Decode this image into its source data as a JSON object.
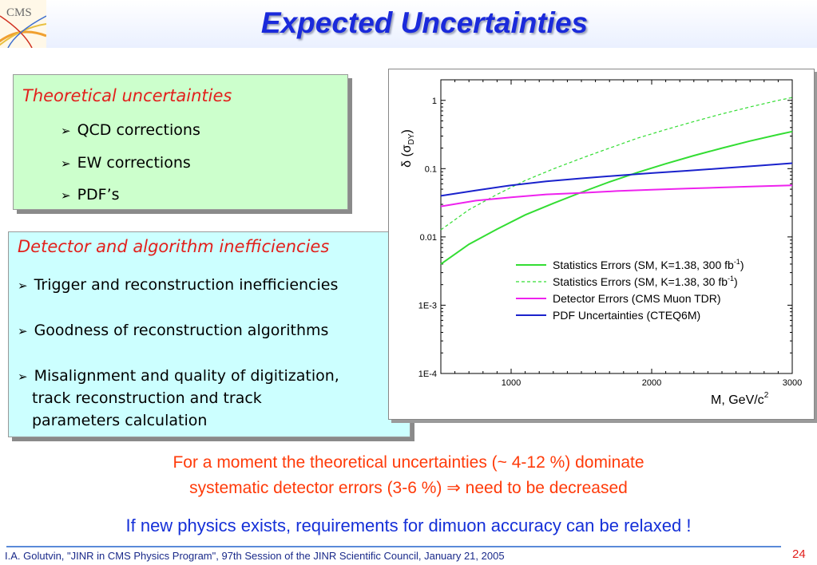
{
  "slide": {
    "logo_text": "CMS",
    "title": "Expected Uncertainties"
  },
  "theory_box": {
    "heading": "Theoretical uncertainties",
    "items": [
      "QCD corrections",
      "EW corrections",
      "PDF’s"
    ]
  },
  "detector_box": {
    "heading": "Detector and algorithm inefficiencies",
    "items": [
      "Trigger and reconstruction inefficiencies",
      "Goodness of reconstruction algorithms"
    ],
    "item3_lines": [
      "Misalignment and quality of digitization,",
      "track reconstruction and track",
      "parameters calculation"
    ]
  },
  "notes": {
    "red_line1": "For a moment the theoretical uncertainties (~ 4-12 %) dominate",
    "red_line2": "systematic detector errors (3-6 %) ⇒ need to be decreased",
    "blue": "If new physics exists, requirements for dimuon accuracy can be relaxed !"
  },
  "footer": {
    "text": "I.A. Golutvin, \"JINR in CMS Physics Program\", 97th Session of the JINR Scientific Council, January 21, 2005",
    "page": "24"
  },
  "chart_data": {
    "type": "line",
    "xlabel": "M, GeV/c",
    "xlabel_sup": "2",
    "ylabel": "δ (σ",
    "ylabel_sub": "DY",
    "ylabel_end": ")",
    "x_scale": "linear",
    "y_scale": "log",
    "xlim": [
      500,
      3000
    ],
    "ylim": [
      0.0001,
      2
    ],
    "xticks": [
      1000,
      2000,
      3000
    ],
    "xtick_labels": [
      "1000",
      "2000",
      "3000"
    ],
    "yticks": [
      1,
      0.1,
      0.01,
      0.001,
      0.0001
    ],
    "ytick_labels": [
      "1",
      "0.1",
      "0.01",
      "1E-3",
      "1E-4"
    ],
    "grid": false,
    "legend_position": "lower-right",
    "series": [
      {
        "name": "Statistics Errors (SM, K=1.38, 300 fb",
        "name_sup": "-1",
        "name_end": ")",
        "color": "#33dd33",
        "dash": "solid",
        "x": [
          500,
          700,
          900,
          1100,
          1300,
          1500,
          1700,
          1900,
          2100,
          2300,
          2500,
          2700,
          2900,
          3000
        ],
        "y": [
          0.004,
          0.0078,
          0.013,
          0.021,
          0.031,
          0.045,
          0.064,
          0.088,
          0.118,
          0.155,
          0.2,
          0.254,
          0.316,
          0.35
        ]
      },
      {
        "name": "Statistics Errors (SM, K=1.38, 30 fb",
        "name_sup": "-1",
        "name_end": ")",
        "color": "#33dd33",
        "dash": "dashed",
        "x": [
          500,
          700,
          900,
          1100,
          1300,
          1500,
          1700,
          1900,
          2100,
          2300,
          2500,
          2700,
          2900,
          3000
        ],
        "y": [
          0.0127,
          0.025,
          0.042,
          0.067,
          0.099,
          0.142,
          0.2,
          0.28,
          0.373,
          0.49,
          0.633,
          0.8,
          1.0,
          1.1
        ]
      },
      {
        "name": "Detector Errors (CMS Muon TDR)",
        "color": "#ee22ee",
        "dash": "solid",
        "x": [
          500,
          750,
          1000,
          1250,
          1500,
          1750,
          2000,
          2250,
          2500,
          2750,
          3000
        ],
        "y": [
          0.028,
          0.034,
          0.038,
          0.042,
          0.044,
          0.047,
          0.049,
          0.051,
          0.053,
          0.055,
          0.057
        ]
      },
      {
        "name": "PDF Uncertainties (CTEQ6M)",
        "color": "#1a22cc",
        "dash": "solid",
        "x": [
          500,
          750,
          1000,
          1250,
          1500,
          1750,
          2000,
          2250,
          2500,
          2750,
          3000
        ],
        "y": [
          0.04,
          0.048,
          0.057,
          0.065,
          0.072,
          0.079,
          0.086,
          0.093,
          0.101,
          0.11,
          0.12
        ]
      }
    ]
  }
}
